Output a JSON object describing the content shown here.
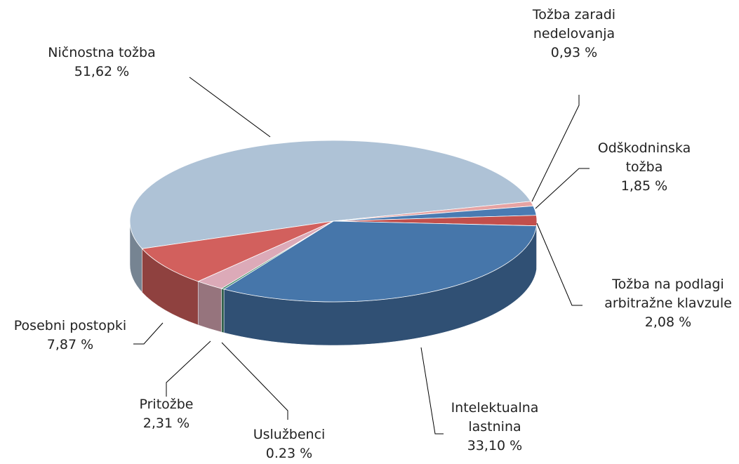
{
  "chart_data": {
    "type": "pie",
    "categories": [
      "Ničnostna tožba",
      "Tožba zaradi nedelovanja",
      "Odškodninska tožba",
      "Tožba na podlagi arbitražne klavzule",
      "Intelektualna lastnina",
      "Uslužbenci",
      "Pritožbe",
      "Posebni postopki"
    ],
    "values": [
      51.62,
      0.93,
      1.85,
      2.08,
      33.1,
      0.23,
      2.31,
      7.87
    ],
    "value_labels": [
      "51,62 %",
      "0,93 %",
      "1,85 %",
      "2,08 %",
      "33,10 %",
      "0.23 %",
      "2,31 %",
      "7,87 %"
    ],
    "colors": [
      "#aec2d6",
      "#e6a3a3",
      "#4a7bb2",
      "#c24f4c",
      "#4676aa",
      "#4a8f70",
      "#dcaab8",
      "#d2605d"
    ]
  }
}
